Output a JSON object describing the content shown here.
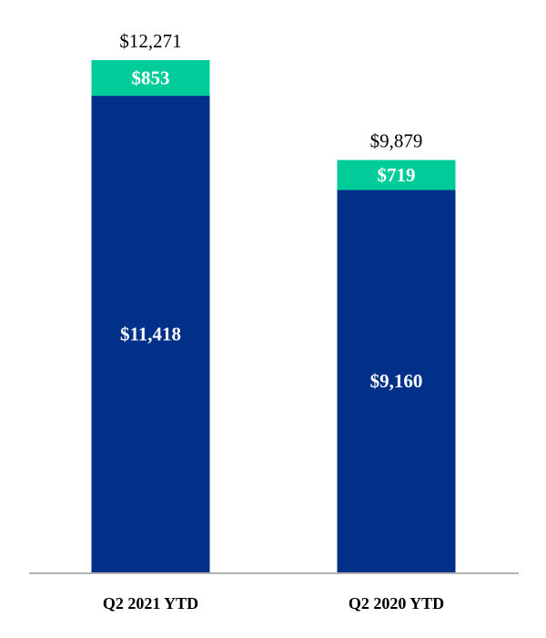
{
  "chart_data": {
    "type": "bar",
    "stacked": true,
    "categories": [
      "Q2 2021 YTD",
      "Q2 2020 YTD"
    ],
    "series": [
      {
        "values": [
          11418,
          9160
        ],
        "labels": [
          "$11,418",
          "$9,160"
        ],
        "color": "#003087"
      },
      {
        "values": [
          853,
          719
        ],
        "labels": [
          "$853",
          "$719"
        ],
        "color": "#00CC99"
      }
    ],
    "totals": [
      12271,
      9879
    ],
    "total_labels": [
      "$12,271",
      "$9,879"
    ],
    "title": "",
    "xlabel": "",
    "ylabel": "",
    "ylim": [
      0,
      12271
    ],
    "grid": false,
    "legend": "none",
    "axis_color": "#999999"
  }
}
